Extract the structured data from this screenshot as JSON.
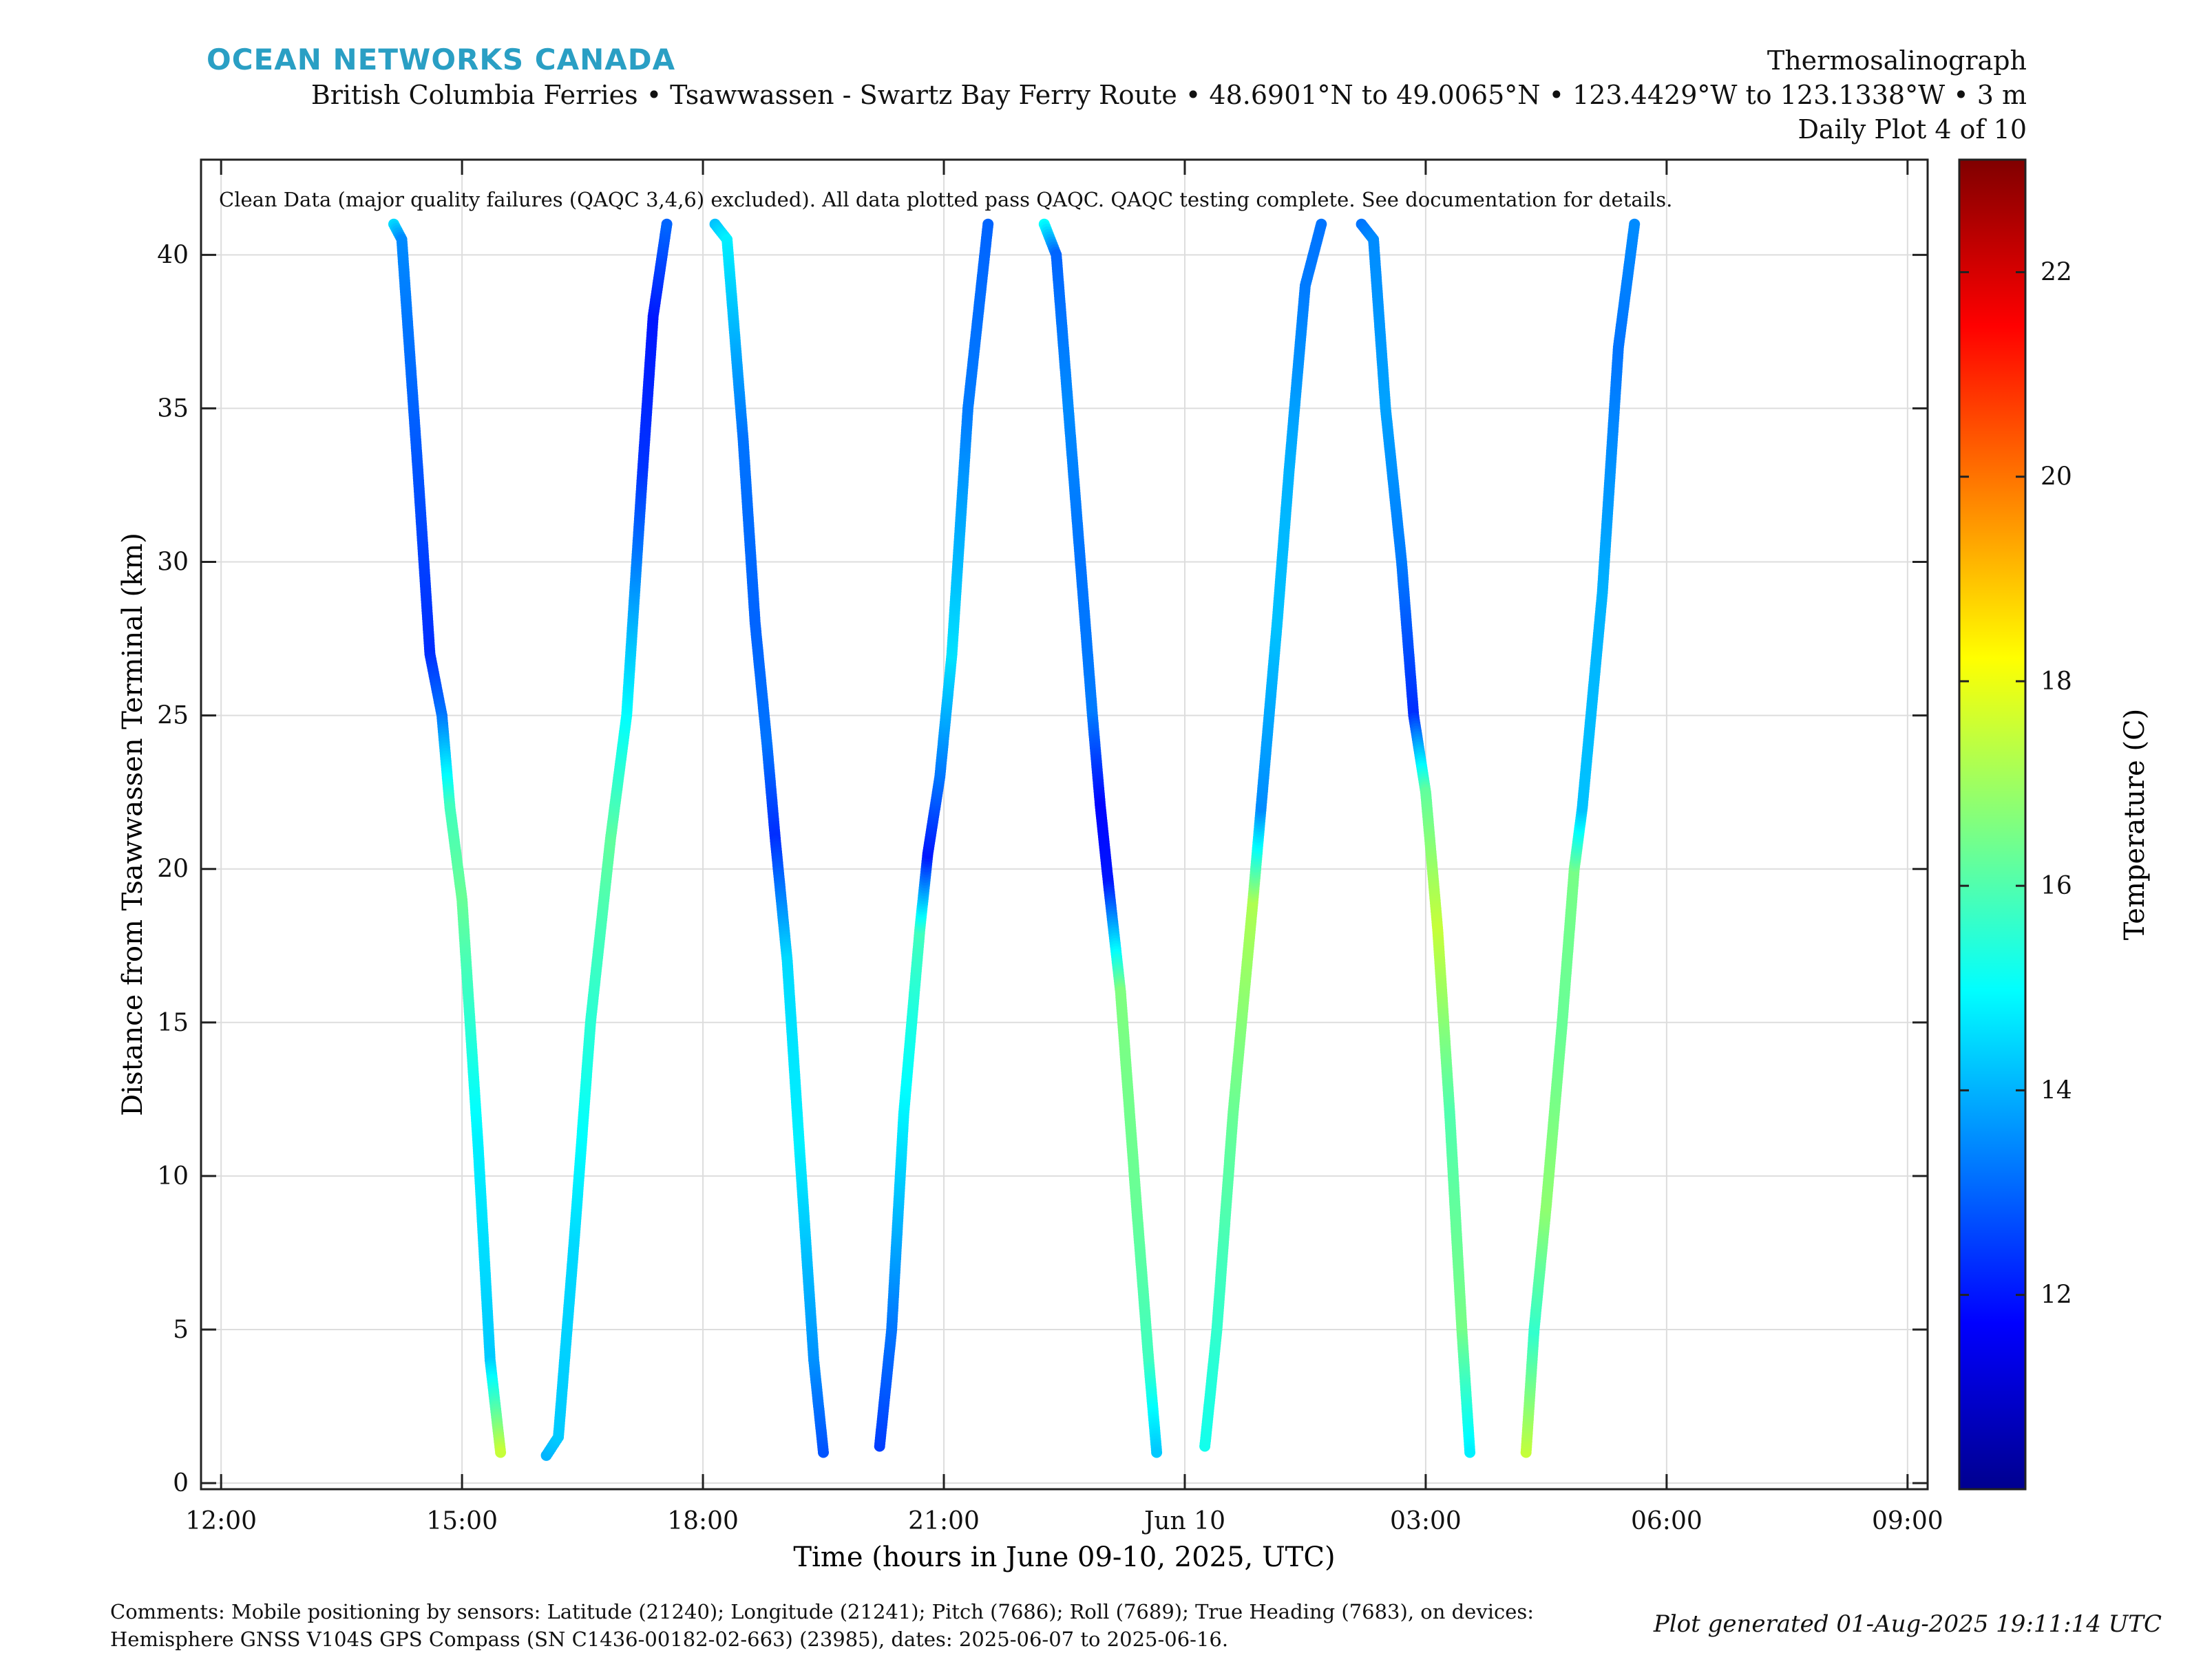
{
  "header": {
    "brand": "OCEAN NETWORKS CANADA",
    "title": "Thermosalinograph",
    "subtitle": "British Columbia Ferries • Tsawwassen - Swartz Bay Ferry Route • 48.6901°N to 49.0065°N • 123.4429°W to 123.1338°W • 3 m",
    "plot_index": "Daily Plot 4 of 10"
  },
  "footer": {
    "comments_line1": "Comments: Mobile positioning by sensors: Latitude (21240); Longitude (21241); Pitch (7686); Roll (7689); True Heading (7683), on devices:",
    "comments_line2": "Hemisphere GNSS V104S GPS Compass (SN C1436-00182-02-663) (23985), dates: 2025-06-07 to 2025-06-16.",
    "generated": "Plot generated 01-Aug-2025 19:11:14 UTC"
  },
  "chart_data": {
    "type": "scatter",
    "annotation": "Clean Data (major quality failures (QAQC 3,4,6) excluded). All data plotted pass QAQC. QAQC testing complete. See documentation for details.",
    "xlabel": "Time (hours in June 09-10, 2025, UTC)",
    "ylabel": "Distance from Tsawwassen Terminal (km)",
    "colorbar_label": "Temperature (C)",
    "x_unit": "hours since 2025-06-09 00:00 UTC",
    "xlim": [
      11.75,
      33.25
    ],
    "ylim": [
      -0.2,
      43.1
    ],
    "x_ticks": [
      {
        "value": 12,
        "label": "12:00"
      },
      {
        "value": 15,
        "label": "15:00"
      },
      {
        "value": 18,
        "label": "18:00"
      },
      {
        "value": 21,
        "label": "21:00"
      },
      {
        "value": 24,
        "label": "Jun 10"
      },
      {
        "value": 27,
        "label": "03:00"
      },
      {
        "value": 30,
        "label": "06:00"
      },
      {
        "value": 33,
        "label": "09:00"
      }
    ],
    "y_ticks": [
      0,
      5,
      10,
      15,
      20,
      25,
      30,
      35,
      40
    ],
    "clim": [
      10.1,
      23.1
    ],
    "colorbar_ticks": [
      12,
      14,
      16,
      18,
      20,
      22
    ],
    "colormap": "jet",
    "grid": true,
    "transects": [
      {
        "points": [
          [
            14.15,
            41.0,
            14.5
          ],
          [
            14.25,
            40.5,
            13.5
          ],
          [
            14.45,
            33.0,
            12.8
          ],
          [
            14.6,
            27.0,
            12.3
          ],
          [
            14.75,
            25.0,
            13.2
          ],
          [
            14.85,
            22.0,
            15.8
          ],
          [
            15.0,
            19.0,
            16.3
          ],
          [
            15.2,
            11.0,
            14.8
          ],
          [
            15.35,
            4.0,
            14.3
          ],
          [
            15.48,
            1.0,
            17.5
          ]
        ]
      },
      {
        "points": [
          [
            16.05,
            0.9,
            14.0
          ],
          [
            16.2,
            1.5,
            14.3
          ],
          [
            16.4,
            8.0,
            14.5
          ],
          [
            16.6,
            15.0,
            15.5
          ],
          [
            16.85,
            21.0,
            16.2
          ],
          [
            17.05,
            25.0,
            15.0
          ],
          [
            17.25,
            33.0,
            12.4
          ],
          [
            17.38,
            38.0,
            12.0
          ],
          [
            17.55,
            41.0,
            13.0
          ]
        ]
      },
      {
        "points": [
          [
            18.15,
            41.0,
            14.2
          ],
          [
            18.3,
            40.5,
            14.8
          ],
          [
            18.5,
            34.0,
            13.2
          ],
          [
            18.65,
            28.0,
            13.0
          ],
          [
            18.8,
            24.0,
            13.2
          ],
          [
            18.9,
            21.0,
            12.3
          ],
          [
            19.05,
            17.0,
            14.5
          ],
          [
            19.2,
            11.0,
            14.8
          ],
          [
            19.38,
            4.0,
            13.6
          ],
          [
            19.5,
            1.0,
            12.8
          ]
        ]
      },
      {
        "points": [
          [
            20.2,
            1.2,
            12.5
          ],
          [
            20.35,
            5.0,
            13.2
          ],
          [
            20.5,
            12.0,
            14.8
          ],
          [
            20.7,
            18.0,
            15.8
          ],
          [
            20.8,
            20.5,
            12.0
          ],
          [
            20.95,
            23.0,
            13.2
          ],
          [
            21.1,
            27.0,
            14.6
          ],
          [
            21.3,
            35.0,
            13.3
          ],
          [
            21.55,
            41.0,
            13.0
          ]
        ]
      },
      {
        "points": [
          [
            22.25,
            41.0,
            15.0
          ],
          [
            22.4,
            40.0,
            13.0
          ],
          [
            22.55,
            35.0,
            13.5
          ],
          [
            22.7,
            30.0,
            13.2
          ],
          [
            22.85,
            25.0,
            13.3
          ],
          [
            22.95,
            22.0,
            11.8
          ],
          [
            23.05,
            19.5,
            12.0
          ],
          [
            23.2,
            16.0,
            16.6
          ],
          [
            23.4,
            9.0,
            16.3
          ],
          [
            23.55,
            4.0,
            15.8
          ],
          [
            23.65,
            1.0,
            14.3
          ]
        ]
      },
      {
        "points": [
          [
            24.25,
            1.2,
            15.2
          ],
          [
            24.4,
            5.0,
            15.6
          ],
          [
            24.6,
            12.0,
            16.3
          ],
          [
            24.85,
            19.0,
            17.2
          ],
          [
            24.95,
            22.0,
            13.5
          ],
          [
            25.15,
            28.0,
            14.2
          ],
          [
            25.3,
            33.0,
            14.0
          ],
          [
            25.5,
            39.0,
            13.3
          ],
          [
            25.7,
            41.0,
            13.2
          ]
        ]
      },
      {
        "points": [
          [
            26.2,
            41.0,
            13.2
          ],
          [
            26.35,
            40.5,
            13.5
          ],
          [
            26.5,
            35.0,
            13.8
          ],
          [
            26.7,
            30.0,
            13.3
          ],
          [
            26.85,
            25.0,
            12.3
          ],
          [
            27.0,
            22.5,
            16.2
          ],
          [
            27.15,
            18.0,
            17.5
          ],
          [
            27.3,
            12.0,
            16.0
          ],
          [
            27.45,
            5.0,
            16.5
          ],
          [
            27.55,
            1.0,
            14.8
          ]
        ]
      },
      {
        "points": [
          [
            28.25,
            1.0,
            17.5
          ],
          [
            28.35,
            5.0,
            15.6
          ],
          [
            28.5,
            9.0,
            16.8
          ],
          [
            28.7,
            15.0,
            16.3
          ],
          [
            28.85,
            20.0,
            16.5
          ],
          [
            28.95,
            22.0,
            14.2
          ],
          [
            29.2,
            29.0,
            14.0
          ],
          [
            29.4,
            37.0,
            13.2
          ],
          [
            29.6,
            41.0,
            13.5
          ]
        ]
      }
    ]
  }
}
